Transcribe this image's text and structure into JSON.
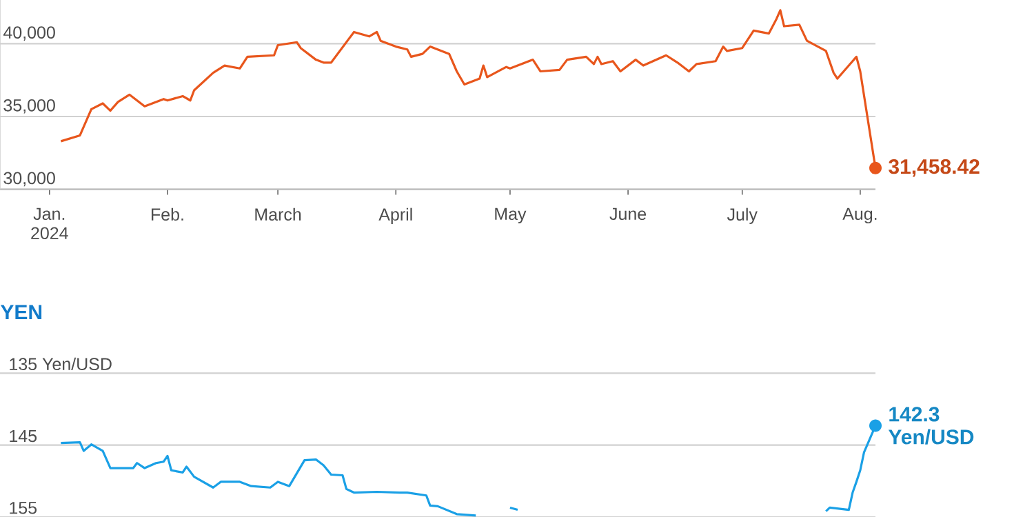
{
  "chart_data": [
    {
      "type": "line",
      "xlim": [
        "2023-12-19",
        "2024-08-05"
      ],
      "ylim": [
        30000,
        43000
      ],
      "grid": "y",
      "yticks": [
        {
          "value": 30000,
          "label": "30,000"
        },
        {
          "value": 35000,
          "label": "35,000"
        },
        {
          "value": 40000,
          "label": "40,000"
        }
      ],
      "xticks": [
        {
          "value": "2024-01-01",
          "label": "Jan. 2024"
        },
        {
          "value": "2024-02-01",
          "label": "Feb."
        },
        {
          "value": "2024-03-01",
          "label": "March"
        },
        {
          "value": "2024-04-01",
          "label": "April"
        },
        {
          "value": "2024-05-01",
          "label": "May"
        },
        {
          "value": "2024-06-01",
          "label": "June"
        },
        {
          "value": "2024-07-01",
          "label": "July"
        },
        {
          "value": "2024-08-01",
          "label": "Aug."
        }
      ],
      "series": [
        {
          "color": "#e8561c",
          "x": [
            "2024-01-04",
            "2024-01-09",
            "2024-01-12",
            "2024-01-15",
            "2024-01-17",
            "2024-01-19",
            "2024-01-22",
            "2024-01-26",
            "2024-01-31",
            "2024-02-01",
            "2024-02-05",
            "2024-02-07",
            "2024-02-08",
            "2024-02-13",
            "2024-02-16",
            "2024-02-20",
            "2024-02-22",
            "2024-02-29",
            "2024-03-01",
            "2024-03-06",
            "2024-03-07",
            "2024-03-11",
            "2024-03-13",
            "2024-03-15",
            "2024-03-21",
            "2024-03-25",
            "2024-03-27",
            "2024-03-28",
            "2024-04-01",
            "2024-04-04",
            "2024-04-05",
            "2024-04-08",
            "2024-04-10",
            "2024-04-15",
            "2024-04-17",
            "2024-04-19",
            "2024-04-23",
            "2024-04-24",
            "2024-04-25",
            "2024-04-30",
            "2024-05-01",
            "2024-05-07",
            "2024-05-09",
            "2024-05-14",
            "2024-05-16",
            "2024-05-21",
            "2024-05-23",
            "2024-05-24",
            "2024-05-25",
            "2024-05-28",
            "2024-05-30",
            "2024-06-03",
            "2024-06-05",
            "2024-06-11",
            "2024-06-14",
            "2024-06-17",
            "2024-06-19",
            "2024-06-24",
            "2024-06-26",
            "2024-06-27",
            "2024-07-01",
            "2024-07-04",
            "2024-07-08",
            "2024-07-10",
            "2024-07-11",
            "2024-07-12",
            "2024-07-16",
            "2024-07-18",
            "2024-07-23",
            "2024-07-25",
            "2024-07-26",
            "2024-07-29",
            "2024-07-31",
            "2024-08-01",
            "2024-08-05"
          ],
          "values": [
            33300,
            33700,
            35500,
            35900,
            35400,
            36000,
            36500,
            35700,
            36200,
            36100,
            36400,
            36100,
            36800,
            38000,
            38500,
            38300,
            39100,
            39200,
            39900,
            40100,
            39700,
            38900,
            38700,
            38700,
            40800,
            40500,
            40800,
            40200,
            39800,
            39600,
            39100,
            39300,
            39800,
            39300,
            38100,
            37200,
            37600,
            38500,
            37700,
            38400,
            38300,
            38900,
            38100,
            38200,
            38900,
            39100,
            38600,
            39100,
            38600,
            38800,
            38100,
            38900,
            38500,
            39200,
            38700,
            38100,
            38600,
            38800,
            39800,
            39500,
            39700,
            40900,
            40700,
            41700,
            42300,
            41200,
            41300,
            40200,
            39500,
            38000,
            37600,
            38500,
            39100,
            38100,
            31458.42
          ]
        }
      ],
      "annotations": [
        {
          "text": "31,458.42",
          "x": "2024-08-05",
          "y": 31458.42
        }
      ]
    },
    {
      "type": "line",
      "title": "YEN",
      "xlim": [
        "2023-12-19",
        "2024-08-05"
      ],
      "ylim": [
        155,
        135
      ],
      "grid": "y",
      "tick_labels": "y",
      "yticks": [
        {
          "value": 135,
          "label": "135 Yen/USD"
        },
        145,
        155
      ],
      "series": [
        {
          "color": "#1aa0e6",
          "x": [
            "2024-01-04",
            "2024-01-09",
            "2024-01-10",
            "2024-01-12",
            "2024-01-15",
            "2024-01-17",
            "2024-01-23",
            "2024-01-24",
            "2024-01-26",
            "2024-01-29",
            "2024-01-31",
            "2024-02-01",
            "2024-02-02",
            "2024-02-05",
            "2024-02-06",
            "2024-02-08",
            "2024-02-13",
            "2024-02-15",
            "2024-02-20",
            "2024-02-23",
            "2024-02-28",
            "2024-03-01",
            "2024-03-04",
            "2024-03-08",
            "2024-03-11",
            "2024-03-13",
            "2024-03-15",
            "2024-03-18",
            "2024-03-19",
            "2024-03-21",
            "2024-03-27",
            "2024-04-02",
            "2024-04-04",
            "2024-04-09",
            "2024-04-10",
            "2024-04-12",
            "2024-04-17",
            "2024-04-22",
            "2024-04-26",
            "2024-05-01",
            "2024-05-03",
            "2024-06-15",
            "2024-07-23",
            "2024-07-24",
            "2024-07-29",
            "2024-07-30",
            "2024-07-31",
            "2024-08-01",
            "2024-08-02",
            "2024-08-05"
          ],
          "values": [
            144.7,
            144.6,
            145.8,
            144.9,
            145.8,
            148.2,
            148.2,
            147.5,
            148.2,
            147.5,
            147.3,
            146.5,
            148.5,
            148.8,
            148.0,
            149.4,
            150.9,
            150.1,
            150.1,
            150.7,
            150.9,
            150.1,
            150.7,
            147.1,
            147.0,
            147.8,
            149.1,
            149.2,
            151.1,
            151.6,
            151.5,
            151.6,
            151.6,
            152.0,
            153.4,
            153.5,
            154.6,
            154.8,
            null,
            153.7,
            154.0,
            null,
            154.2,
            153.7,
            154.0,
            151.6,
            150.1,
            148.5,
            146.0,
            142.3
          ]
        }
      ],
      "annotations": [
        {
          "text": "142.3 Yen/USD",
          "x": "2024-08-05",
          "y": 142.3
        }
      ]
    }
  ]
}
